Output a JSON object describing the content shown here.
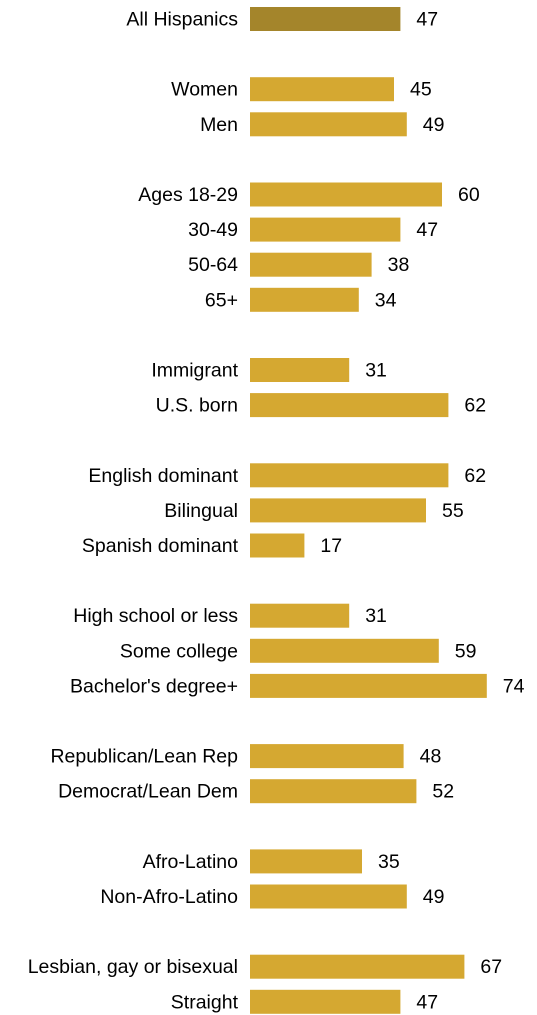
{
  "chart_data": {
    "type": "bar",
    "orientation": "horizontal",
    "colors": {
      "bar": "#d5a831",
      "highlight": "#a4852b"
    },
    "groups": [
      {
        "highlight": true,
        "categories": [
          "All Hispanics"
        ],
        "values": [
          47
        ]
      },
      {
        "categories": [
          "Women",
          "Men"
        ],
        "values": [
          45,
          49
        ]
      },
      {
        "categories": [
          "Ages 18-29",
          "30-49",
          "50-64",
          "65+"
        ],
        "values": [
          60,
          47,
          38,
          34
        ]
      },
      {
        "categories": [
          "Immigrant",
          "U.S. born"
        ],
        "values": [
          31,
          62
        ]
      },
      {
        "categories": [
          "English dominant",
          "Bilingual",
          "Spanish dominant"
        ],
        "values": [
          62,
          55,
          17
        ]
      },
      {
        "categories": [
          "High school or less",
          "Some college",
          "Bachelor's degree+"
        ],
        "values": [
          31,
          59,
          74
        ]
      },
      {
        "categories": [
          "Republican/Lean Rep",
          "Democrat/Lean Dem"
        ],
        "values": [
          48,
          52
        ]
      },
      {
        "categories": [
          "Afro-Latino",
          "Non-Afro-Latino"
        ],
        "values": [
          35,
          49
        ]
      },
      {
        "categories": [
          "Lesbian, gay or bisexual",
          "Straight"
        ],
        "values": [
          67,
          47
        ]
      }
    ]
  }
}
